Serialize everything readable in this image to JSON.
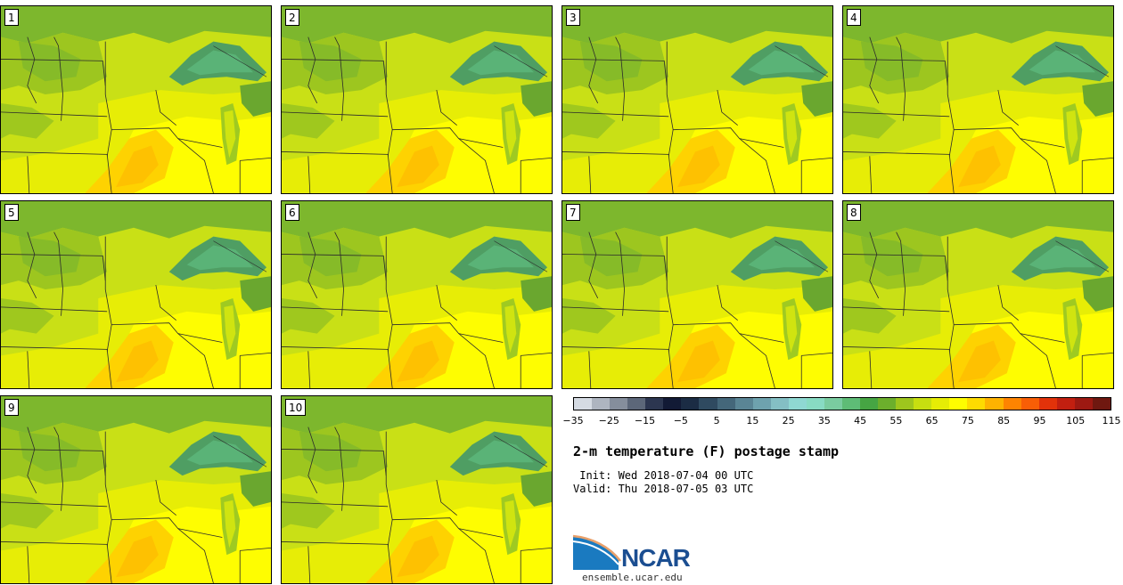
{
  "stamps": [
    {
      "label": "1"
    },
    {
      "label": "2"
    },
    {
      "label": "3"
    },
    {
      "label": "4"
    },
    {
      "label": "5"
    },
    {
      "label": "6"
    },
    {
      "label": "7"
    },
    {
      "label": "8"
    },
    {
      "label": "9"
    },
    {
      "label": "10"
    }
  ],
  "colorbar": {
    "colors": [
      "#d5dbe3",
      "#aeb5c0",
      "#858e9c",
      "#5c6779",
      "#2c3650",
      "#121a35",
      "#1b2c44",
      "#2f4a60",
      "#44677a",
      "#5a8595",
      "#6ea2ae",
      "#84bfc4",
      "#8fd8d2",
      "#88dbc3",
      "#7acca0",
      "#5ebc76",
      "#46a543",
      "#6caf2c",
      "#9ec61d",
      "#c7df10",
      "#e6ec05",
      "#fefd01",
      "#fedb01",
      "#feb301",
      "#fe8401",
      "#f85e06",
      "#e2320a",
      "#c21f10",
      "#9d1912",
      "#6f1810"
    ],
    "tick_labels": [
      "−35",
      "−25",
      "−15",
      "−5",
      "5",
      "15",
      "25",
      "35",
      "45",
      "55",
      "65",
      "75",
      "85",
      "95",
      "105",
      "115"
    ]
  },
  "title": "2-m temperature (F) postage stamp",
  "init": " Init: Wed 2018-07-04 00 UTC",
  "valid": "Valid: Thu 2018-07-05 03 UTC",
  "logo": {
    "text": "NCAR",
    "url": "ensemble.ucar.edu"
  }
}
